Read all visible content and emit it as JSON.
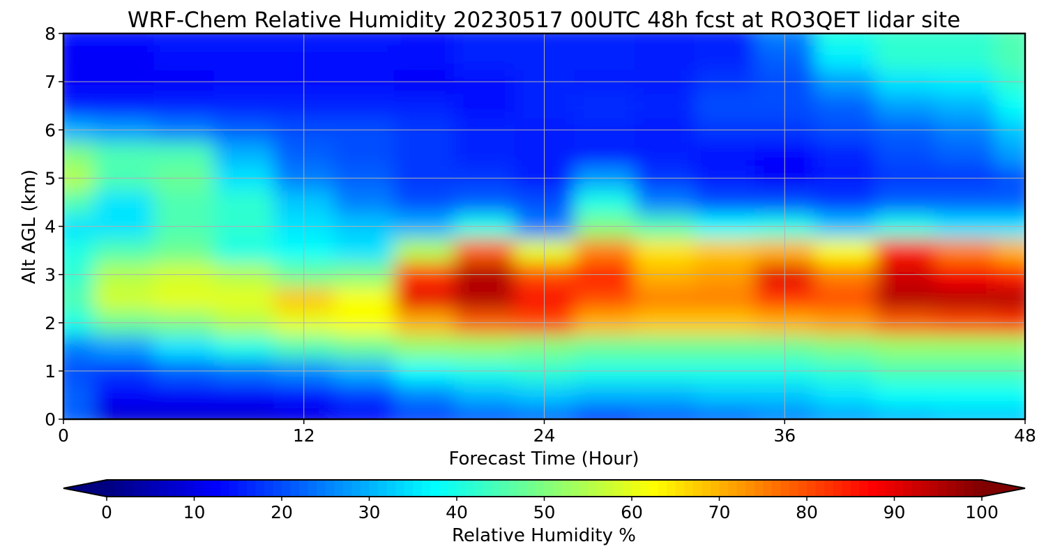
{
  "chart_data": {
    "type": "heatmap",
    "title": "WRF-Chem Relative Humidity 20230517 00UTC 48h fcst at RO3QET lidar site",
    "xlabel": "Forecast Time (Hour)",
    "ylabel": "Alt AGL (km)",
    "xlim": [
      0,
      48
    ],
    "ylim": [
      0,
      8
    ],
    "x_ticks": [
      "0",
      "12",
      "24",
      "36",
      "48"
    ],
    "y_ticks": [
      "0",
      "1",
      "2",
      "3",
      "4",
      "5",
      "6",
      "7",
      "8"
    ],
    "grid": true,
    "colorscale": "jet",
    "colorbar": {
      "label": "Relative Humidity %",
      "range": [
        0,
        100
      ],
      "ticks": [
        "0",
        "10",
        "20",
        "30",
        "40",
        "50",
        "60",
        "70",
        "80",
        "90",
        "100"
      ],
      "orientation": "horizontal",
      "placement": "bottom",
      "extend": "both"
    },
    "x": [
      0,
      3,
      6,
      9,
      12,
      15,
      18,
      21,
      24,
      27,
      30,
      33,
      36,
      39,
      42,
      45,
      48
    ],
    "y": [
      0,
      0.5,
      1,
      1.5,
      2,
      2.5,
      3,
      3.5,
      4,
      4.5,
      5,
      5.5,
      6,
      6.5,
      7,
      7.5,
      8
    ],
    "z": [
      [
        22,
        8,
        8,
        8,
        10,
        12,
        18,
        20,
        22,
        15,
        20,
        22,
        25,
        28,
        30,
        32,
        32
      ],
      [
        22,
        12,
        12,
        12,
        14,
        18,
        25,
        30,
        32,
        30,
        30,
        32,
        32,
        35,
        38,
        38,
        38
      ],
      [
        20,
        18,
        22,
        24,
        26,
        30,
        38,
        40,
        42,
        40,
        40,
        40,
        40,
        42,
        45,
        45,
        45
      ],
      [
        25,
        28,
        35,
        40,
        45,
        48,
        52,
        52,
        50,
        48,
        48,
        48,
        48,
        50,
        52,
        52,
        52
      ],
      [
        40,
        48,
        50,
        55,
        60,
        62,
        70,
        78,
        80,
        70,
        68,
        68,
        70,
        72,
        78,
        80,
        82
      ],
      [
        45,
        58,
        60,
        60,
        68,
        62,
        90,
        95,
        88,
        80,
        75,
        75,
        82,
        80,
        95,
        95,
        95
      ],
      [
        42,
        55,
        58,
        55,
        48,
        50,
        82,
        95,
        80,
        85,
        70,
        72,
        90,
        75,
        92,
        88,
        85
      ],
      [
        40,
        45,
        48,
        40,
        38,
        35,
        55,
        78,
        60,
        75,
        65,
        68,
        70,
        62,
        85,
        75,
        70
      ],
      [
        35,
        35,
        45,
        42,
        35,
        32,
        30,
        40,
        25,
        50,
        45,
        38,
        40,
        32,
        40,
        35,
        35
      ],
      [
        45,
        35,
        45,
        42,
        32,
        25,
        20,
        22,
        20,
        40,
        25,
        20,
        20,
        18,
        22,
        22,
        22
      ],
      [
        55,
        45,
        48,
        35,
        25,
        22,
        18,
        18,
        15,
        28,
        18,
        15,
        12,
        15,
        18,
        18,
        20
      ],
      [
        50,
        45,
        45,
        30,
        22,
        20,
        18,
        16,
        15,
        15,
        15,
        14,
        13,
        16,
        20,
        22,
        28
      ],
      [
        30,
        28,
        25,
        22,
        20,
        20,
        18,
        16,
        15,
        16,
        15,
        18,
        18,
        20,
        22,
        25,
        32
      ],
      [
        15,
        15,
        16,
        16,
        16,
        16,
        16,
        14,
        16,
        17,
        16,
        20,
        20,
        22,
        28,
        30,
        38
      ],
      [
        12,
        12,
        12,
        14,
        14,
        14,
        12,
        14,
        16,
        15,
        15,
        18,
        20,
        28,
        35,
        36,
        42
      ],
      [
        12,
        12,
        14,
        14,
        14,
        14,
        14,
        16,
        16,
        16,
        15,
        16,
        22,
        36,
        42,
        42,
        45
      ],
      [
        14,
        14,
        15,
        15,
        15,
        15,
        14,
        16,
        16,
        16,
        15,
        16,
        25,
        40,
        42,
        42,
        45
      ]
    ]
  }
}
